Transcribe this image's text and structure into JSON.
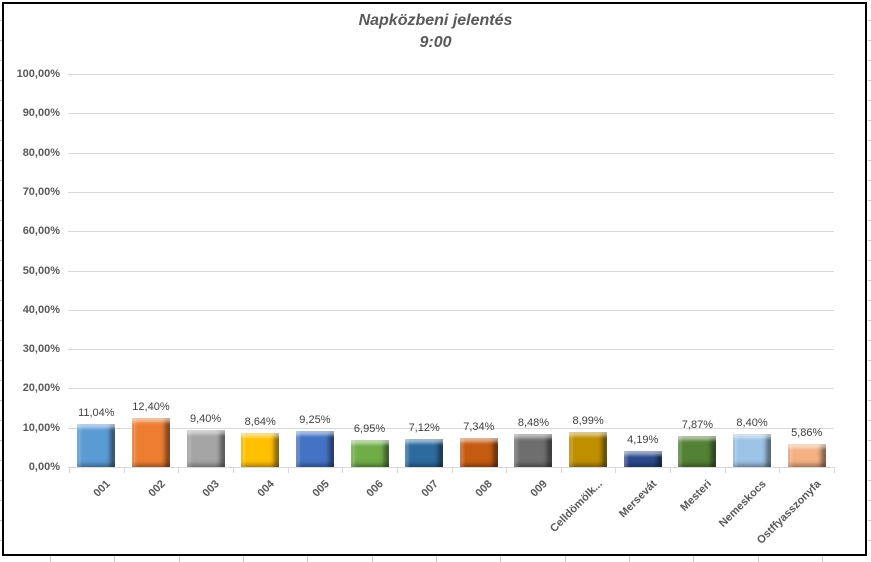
{
  "header": {
    "line1": "Napközbeni jelentés",
    "line2": "9:00"
  },
  "chart_data": {
    "type": "bar",
    "title": "Napközbeni jelentés",
    "subtitle": "9:00",
    "categories": [
      "001",
      "002",
      "003",
      "004",
      "005",
      "006",
      "007",
      "008",
      "009",
      "Celldömölk...",
      "Mersevát",
      "Mesteri",
      "Nemeskocs",
      "Ostffyasszonyfa"
    ],
    "values": [
      11.04,
      12.4,
      9.4,
      8.64,
      9.25,
      6.95,
      7.12,
      7.34,
      8.48,
      8.99,
      4.19,
      7.87,
      8.4,
      5.86
    ],
    "value_labels": [
      "11,04%",
      "12,40%",
      "9,40%",
      "8,64%",
      "9,25%",
      "6,95%",
      "7,12%",
      "7,34%",
      "8,48%",
      "8,99%",
      "4,19%",
      "7,87%",
      "8,40%",
      "5,86%"
    ],
    "bar_colors": [
      "#5B9BD5",
      "#ED7D31",
      "#A5A5A5",
      "#FFC000",
      "#4472C4",
      "#70AD47",
      "#2D6B9F",
      "#C55A11",
      "#6E6E6E",
      "#BF8F00",
      "#2B4A8C",
      "#538135",
      "#9DC3E6",
      "#F4B183"
    ],
    "y_axis": {
      "min": 0,
      "max": 100,
      "step": 10,
      "tick_labels_top_down": [
        "100,00%",
        "90,00%",
        "80,00%",
        "70,00%",
        "60,00%",
        "50,00%",
        "40,00%",
        "30,00%",
        "20,00%",
        "10,00%",
        "0,00%"
      ]
    },
    "x_axis": {
      "label_rotation_deg": 45
    },
    "grid": true,
    "legend": "none",
    "data_labels": true
  },
  "colors": {
    "background": "#FFFFFF",
    "chart_border": "#000000",
    "gridline": "#D9D9D9",
    "title_text": "#595959",
    "axis_text": "#595959",
    "data_label_text": "#404040",
    "worksheet_gridline_stub": "#C6C6C6"
  }
}
